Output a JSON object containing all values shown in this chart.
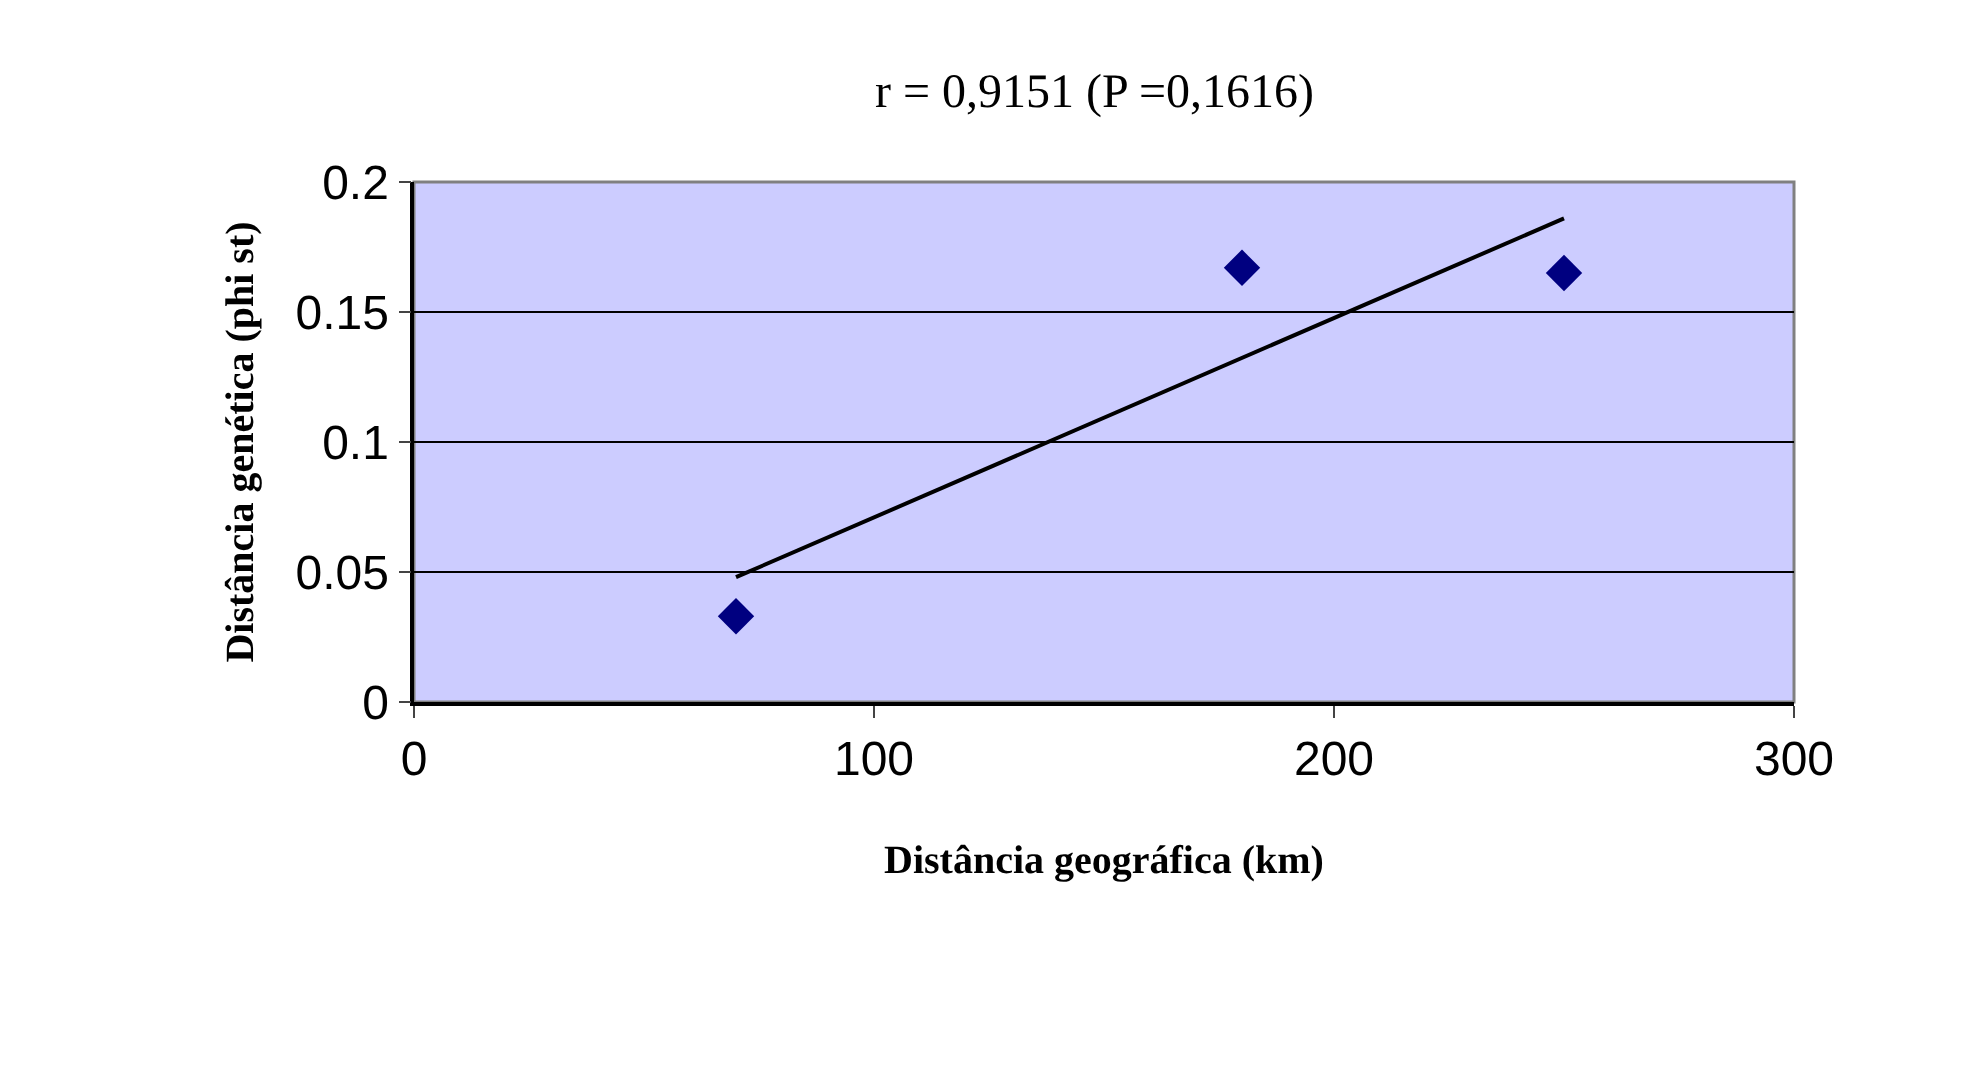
{
  "chart_data": {
    "type": "scatter",
    "title": "r = 0,9151 (P =0,1616)",
    "xlabel": "Distância geográfica (km)",
    "ylabel": "Distância genética (phi st)",
    "series": [
      {
        "x": [
          70,
          180,
          250
        ],
        "values": [
          0.033,
          0.167,
          0.165
        ],
        "color": "#000080",
        "marker": "diamond"
      },
      {
        "type": "line",
        "x": [
          70,
          250
        ],
        "values": [
          0.048,
          0.186
        ],
        "color": "#000000",
        "line_style": "solid",
        "marker": "none"
      }
    ],
    "xlim": [
      0,
      300
    ],
    "xticks": [
      0,
      100,
      200,
      300
    ],
    "ylim": [
      0,
      0.2
    ],
    "yticks": [
      0,
      0.05,
      0.1,
      0.15,
      0.2
    ],
    "grid": "y",
    "legend": false
  }
}
